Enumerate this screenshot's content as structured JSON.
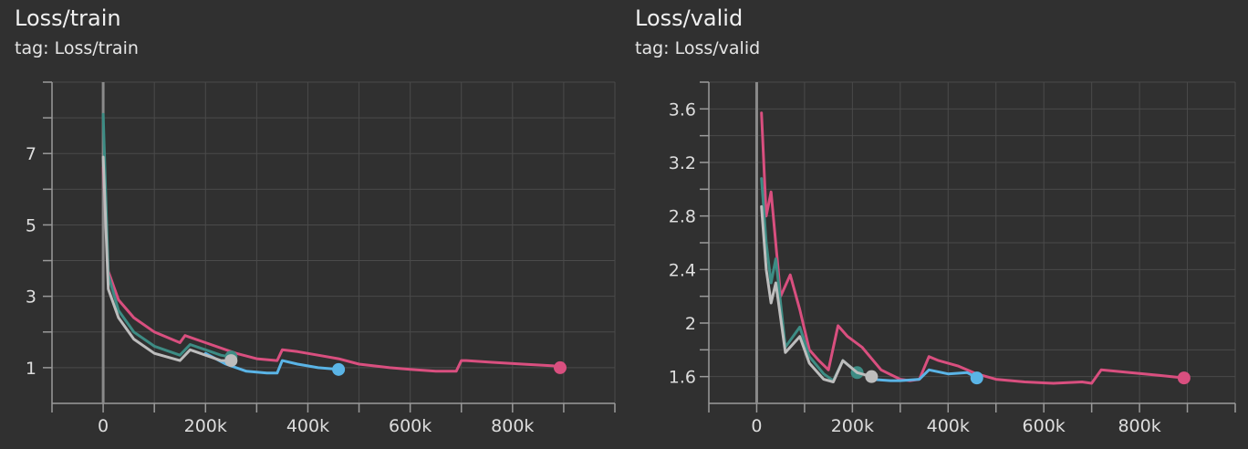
{
  "chart_data": [
    {
      "type": "line",
      "title": "Loss/train",
      "subtitle": "tag: Loss/train",
      "xlim": [
        -100000,
        1000000
      ],
      "ylim": [
        0,
        9
      ],
      "xticks": [
        0,
        200000,
        400000,
        600000,
        800000
      ],
      "xtick_labels": [
        "0",
        "200k",
        "400k",
        "600k",
        "800k"
      ],
      "yticks": [
        1,
        3,
        5,
        7
      ],
      "ytick_labels": [
        "1",
        "3",
        "5",
        "7"
      ],
      "grid": true,
      "series": [
        {
          "color": "#d94f7f",
          "x": [
            0,
            10000,
            30000,
            60000,
            100000,
            150000,
            160000,
            200000,
            260000,
            300000,
            340000,
            350000,
            380000,
            420000,
            460000,
            500000,
            560000,
            600000,
            650000,
            690000,
            700000,
            710000,
            760000,
            820000,
            880000,
            893000
          ],
          "y": [
            6.6,
            3.7,
            2.9,
            2.4,
            2.0,
            1.7,
            1.9,
            1.7,
            1.4,
            1.25,
            1.2,
            1.5,
            1.45,
            1.35,
            1.25,
            1.1,
            1.0,
            0.95,
            0.9,
            0.9,
            1.2,
            1.2,
            1.15,
            1.1,
            1.05,
            1.0
          ]
        },
        {
          "color": "#3d8c84",
          "x": [
            0,
            10000,
            30000,
            60000,
            100000,
            150000,
            170000,
            200000,
            230000,
            250000
          ],
          "y": [
            8.1,
            3.6,
            2.6,
            2.0,
            1.6,
            1.35,
            1.65,
            1.5,
            1.35,
            1.3
          ]
        },
        {
          "color": "#5ab4e6",
          "x": [
            200000,
            240000,
            280000,
            320000,
            340000,
            350000,
            380000,
            420000,
            460000
          ],
          "y": [
            1.4,
            1.1,
            0.9,
            0.85,
            0.85,
            1.2,
            1.1,
            1.0,
            0.95
          ]
        },
        {
          "color": "#bdbdbd",
          "x": [
            0,
            10000,
            30000,
            60000,
            100000,
            150000,
            170000,
            200000,
            230000,
            250000
          ],
          "y": [
            6.9,
            3.2,
            2.4,
            1.8,
            1.4,
            1.2,
            1.5,
            1.35,
            1.2,
            1.2
          ]
        }
      ]
    },
    {
      "type": "line",
      "title": "Loss/valid",
      "subtitle": "tag: Loss/valid",
      "xlim": [
        -100000,
        1000000
      ],
      "ylim": [
        1.4,
        3.8
      ],
      "xticks": [
        0,
        200000,
        400000,
        600000,
        800000
      ],
      "xtick_labels": [
        "0",
        "200k",
        "400k",
        "600k",
        "800k"
      ],
      "yticks": [
        1.6,
        2.0,
        2.4,
        2.8,
        3.2,
        3.6
      ],
      "ytick_labels": [
        "1.6",
        "2",
        "2.4",
        "2.8",
        "3.2",
        "3.6"
      ],
      "grid": true,
      "series": [
        {
          "color": "#d94f7f",
          "x": [
            10000,
            20000,
            30000,
            50000,
            70000,
            90000,
            110000,
            130000,
            150000,
            170000,
            190000,
            220000,
            260000,
            300000,
            320000,
            340000,
            360000,
            380000,
            420000,
            460000,
            500000,
            560000,
            620000,
            680000,
            700000,
            720000,
            780000,
            840000,
            893000
          ],
          "y": [
            3.57,
            2.8,
            2.98,
            2.2,
            2.36,
            2.1,
            1.8,
            1.72,
            1.65,
            1.98,
            1.9,
            1.82,
            1.65,
            1.58,
            1.57,
            1.58,
            1.75,
            1.72,
            1.68,
            1.62,
            1.58,
            1.56,
            1.55,
            1.56,
            1.55,
            1.65,
            1.63,
            1.61,
            1.59
          ]
        },
        {
          "color": "#3d8c84",
          "x": [
            10000,
            20000,
            30000,
            40000,
            60000,
            90000,
            110000,
            140000,
            160000,
            180000,
            210000
          ],
          "y": [
            3.08,
            2.6,
            2.3,
            2.48,
            1.82,
            1.97,
            1.75,
            1.62,
            1.57,
            1.72,
            1.63
          ]
        },
        {
          "color": "#5ab4e6",
          "x": [
            240000,
            280000,
            300000,
            340000,
            360000,
            400000,
            440000,
            460000
          ],
          "y": [
            1.58,
            1.57,
            1.57,
            1.58,
            1.65,
            1.62,
            1.63,
            1.59
          ]
        },
        {
          "color": "#bdbdbd",
          "x": [
            10000,
            20000,
            30000,
            40000,
            60000,
            90000,
            110000,
            140000,
            160000,
            180000,
            210000,
            240000
          ],
          "y": [
            2.87,
            2.4,
            2.15,
            2.3,
            1.78,
            1.9,
            1.7,
            1.58,
            1.56,
            1.72,
            1.63,
            1.6
          ]
        }
      ]
    }
  ]
}
